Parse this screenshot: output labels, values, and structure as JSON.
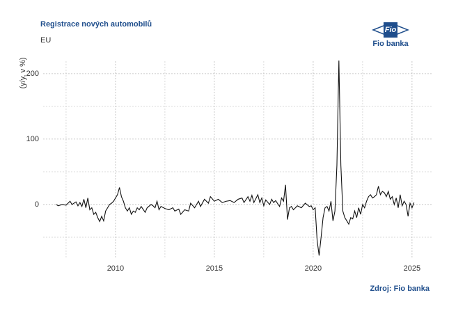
{
  "chart_data": {
    "type": "line",
    "title": "Registrace nových automobilů",
    "subtitle": "EU",
    "y_label": "(y/y, v %)",
    "source": "Zdroj: Fio banka",
    "x": [
      2007.0,
      2007.1,
      2007.3,
      2007.5,
      2007.7,
      2007.8,
      2008.0,
      2008.1,
      2008.2,
      2008.3,
      2008.4,
      2008.5,
      2008.6,
      2008.7,
      2008.8,
      2008.9,
      2009.0,
      2009.1,
      2009.2,
      2009.3,
      2009.4,
      2009.5,
      2009.6,
      2009.7,
      2009.8,
      2009.9,
      2010.0,
      2010.1,
      2010.2,
      2010.3,
      2010.4,
      2010.5,
      2010.6,
      2010.7,
      2010.8,
      2010.9,
      2011.0,
      2011.1,
      2011.2,
      2011.3,
      2011.5,
      2011.6,
      2011.8,
      2011.9,
      2012.0,
      2012.1,
      2012.2,
      2012.3,
      2012.5,
      2012.7,
      2012.9,
      2013.0,
      2013.2,
      2013.3,
      2013.5,
      2013.7,
      2013.8,
      2014.0,
      2014.2,
      2014.3,
      2014.5,
      2014.7,
      2014.8,
      2015.0,
      2015.2,
      2015.4,
      2015.6,
      2015.8,
      2016.0,
      2016.2,
      2016.4,
      2016.5,
      2016.7,
      2016.8,
      2016.9,
      2017.0,
      2017.2,
      2017.3,
      2017.4,
      2017.5,
      2017.6,
      2017.8,
      2017.9,
      2018.0,
      2018.1,
      2018.3,
      2018.4,
      2018.5,
      2018.6,
      2018.7,
      2018.8,
      2018.9,
      2019.0,
      2019.2,
      2019.4,
      2019.6,
      2019.8,
      2019.9,
      2020.0,
      2020.1,
      2020.2,
      2020.3,
      2020.4,
      2020.5,
      2020.6,
      2020.7,
      2020.8,
      2020.9,
      2021.0,
      2021.1,
      2021.2,
      2021.3,
      2021.4,
      2021.5,
      2021.6,
      2021.7,
      2021.8,
      2021.9,
      2022.0,
      2022.1,
      2022.2,
      2022.3,
      2022.4,
      2022.5,
      2022.6,
      2022.7,
      2022.8,
      2022.9,
      2023.0,
      2023.1,
      2023.2,
      2023.3,
      2023.4,
      2023.5,
      2023.6,
      2023.7,
      2023.8,
      2023.9,
      2024.0,
      2024.1,
      2024.2,
      2024.3,
      2024.4,
      2024.5,
      2024.6,
      2024.7,
      2024.8,
      2024.9,
      2025.0,
      2025.1
    ],
    "series": [
      {
        "color": "#111111",
        "values": [
          0,
          -2,
          0,
          -1,
          5,
          0,
          4,
          -2,
          3,
          -3,
          8,
          -5,
          10,
          -8,
          -5,
          -15,
          -12,
          -20,
          -26,
          -18,
          -25,
          -10,
          -5,
          0,
          2,
          5,
          10,
          15,
          26,
          12,
          5,
          -5,
          -10,
          -5,
          -15,
          -10,
          -12,
          -5,
          -8,
          -3,
          -12,
          -5,
          0,
          -2,
          -5,
          5,
          -8,
          -3,
          -6,
          -8,
          -5,
          -10,
          -7,
          -15,
          -8,
          -10,
          2,
          -5,
          5,
          -3,
          8,
          2,
          12,
          5,
          8,
          3,
          5,
          6,
          3,
          8,
          10,
          3,
          12,
          5,
          14,
          3,
          15,
          3,
          10,
          -2,
          7,
          0,
          8,
          3,
          6,
          -3,
          10,
          5,
          30,
          -23,
          -5,
          -3,
          -8,
          -2,
          -5,
          2,
          -3,
          -2,
          -8,
          -5,
          -55,
          -78,
          -50,
          -20,
          -5,
          -3,
          -10,
          5,
          -25,
          -10,
          60,
          220,
          60,
          -10,
          -20,
          -25,
          -30,
          -20,
          -22,
          -10,
          -20,
          -5,
          -15,
          0,
          -5,
          5,
          12,
          15,
          10,
          12,
          15,
          28,
          15,
          20,
          18,
          12,
          20,
          8,
          12,
          0,
          10,
          -5,
          15,
          -2,
          5,
          0,
          -18,
          2,
          -5,
          3
        ]
      }
    ],
    "xlim": [
      2006.34,
      2025.99
    ],
    "ylim": [
      -83,
      219
    ],
    "xticks": [
      2010,
      2015,
      2020,
      2025
    ],
    "yticks": [
      0,
      100,
      200
    ],
    "x_minor_grid": [
      2007.5,
      2012.5,
      2017.5,
      2022.5
    ],
    "y_minor_grid": [
      -50,
      50,
      150
    ],
    "grid": true
  },
  "logo": {
    "mark": "Fio",
    "name": "Fio banka"
  }
}
